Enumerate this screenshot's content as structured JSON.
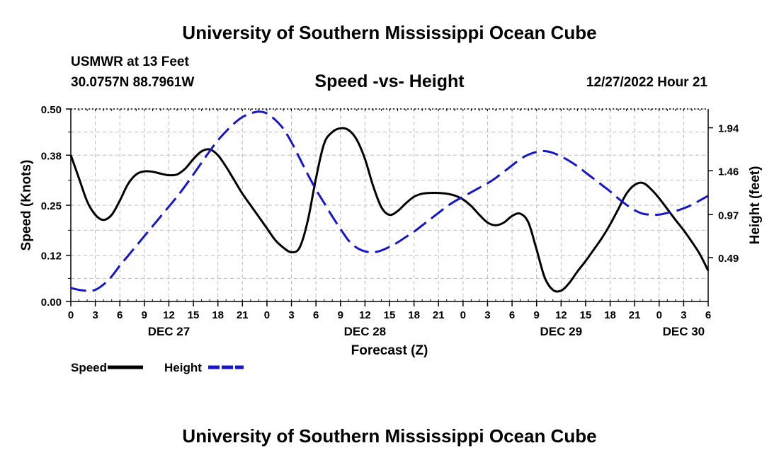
{
  "header": {
    "title": "University of Southern Mississippi Ocean Cube",
    "station": "USMWR at 13 Feet",
    "coords": "30.0757N  88.7961W",
    "subtitle": "Speed -vs- Height",
    "datetime": "12/27/2022 Hour 21"
  },
  "footer": {
    "title": "University of Southern Mississippi Ocean Cube"
  },
  "chart_data": {
    "type": "line",
    "title": "Speed -vs- Height",
    "xlabel": "Forecast (Z)",
    "ylabel": "Speed (Knots)",
    "y2label": "Height (feet)",
    "x_unit": "hours since DEC 27 00Z",
    "xlim": [
      0,
      78
    ],
    "ylim": [
      0.0,
      0.5
    ],
    "y2lim": [
      0.0,
      2.15
    ],
    "yticks": [
      0.0,
      0.12,
      0.25,
      0.38,
      0.5
    ],
    "ytick_labels": [
      "0.00",
      "0.12",
      "0.25",
      "0.38",
      "0.50"
    ],
    "y2ticks": [
      0.49,
      0.97,
      1.46,
      1.94
    ],
    "y2tick_labels": [
      "0.49",
      "0.97",
      "1.46",
      "1.94"
    ],
    "xticks": [
      0,
      3,
      6,
      9,
      12,
      15,
      18,
      21,
      24,
      27,
      30,
      33,
      36,
      39,
      42,
      45,
      48,
      51,
      54,
      57,
      60,
      63,
      66,
      69,
      72,
      75,
      78
    ],
    "xtick_labels": [
      "0",
      "3",
      "6",
      "9",
      "12",
      "15",
      "18",
      "21",
      "0",
      "3",
      "6",
      "9",
      "12",
      "15",
      "18",
      "21",
      "0",
      "3",
      "6",
      "9",
      "12",
      "15",
      "18",
      "21",
      "0",
      "3",
      "6"
    ],
    "day_labels": [
      {
        "x": 12,
        "label": "DEC 27"
      },
      {
        "x": 36,
        "label": "DEC 28"
      },
      {
        "x": 60,
        "label": "DEC 29"
      },
      {
        "x": 75,
        "label": "DEC 30"
      }
    ],
    "grid": true,
    "legend": "bottom-left",
    "series": [
      {
        "name": "Speed",
        "axis": "left",
        "color": "#000000",
        "style": "solid",
        "x": [
          0,
          1,
          2,
          3,
          4,
          5,
          6,
          7,
          8,
          9,
          10,
          11,
          12,
          13,
          14,
          15,
          16,
          17,
          18,
          19,
          20,
          21,
          22,
          23,
          24,
          25,
          26,
          27,
          28,
          29,
          30,
          31,
          32,
          33,
          34,
          35,
          36,
          37,
          38,
          39,
          40,
          41,
          42,
          43,
          44,
          45,
          46,
          47,
          48,
          49,
          50,
          51,
          52,
          53,
          54,
          55,
          56,
          57,
          58,
          59,
          60,
          61,
          62,
          63,
          64,
          65,
          66,
          67,
          68,
          69,
          70,
          71,
          72,
          73,
          74,
          75,
          76,
          77,
          78
        ],
        "values": [
          0.38,
          0.32,
          0.26,
          0.225,
          0.212,
          0.225,
          0.262,
          0.305,
          0.33,
          0.338,
          0.337,
          0.332,
          0.328,
          0.33,
          0.345,
          0.37,
          0.39,
          0.395,
          0.38,
          0.35,
          0.315,
          0.28,
          0.25,
          0.22,
          0.19,
          0.16,
          0.14,
          0.128,
          0.14,
          0.21,
          0.32,
          0.41,
          0.44,
          0.45,
          0.445,
          0.42,
          0.37,
          0.3,
          0.245,
          0.225,
          0.235,
          0.255,
          0.272,
          0.28,
          0.282,
          0.282,
          0.28,
          0.275,
          0.265,
          0.248,
          0.225,
          0.205,
          0.198,
          0.205,
          0.222,
          0.228,
          0.205,
          0.135,
          0.062,
          0.03,
          0.028,
          0.048,
          0.078,
          0.105,
          0.135,
          0.165,
          0.2,
          0.24,
          0.28,
          0.303,
          0.308,
          0.292,
          0.268,
          0.24,
          0.212,
          0.185,
          0.155,
          0.122,
          0.08
        ]
      },
      {
        "name": "Height",
        "axis": "right",
        "color": "#1515cc",
        "style": "dashed",
        "x": [
          0,
          1,
          2,
          3,
          4,
          5,
          6,
          7,
          8,
          9,
          10,
          11,
          12,
          13,
          14,
          15,
          16,
          17,
          18,
          19,
          20,
          21,
          22,
          23,
          24,
          25,
          26,
          27,
          28,
          29,
          30,
          31,
          32,
          33,
          34,
          35,
          36,
          37,
          38,
          39,
          40,
          41,
          42,
          43,
          44,
          45,
          46,
          47,
          48,
          49,
          50,
          51,
          52,
          53,
          54,
          55,
          56,
          57,
          58,
          59,
          60,
          61,
          62,
          63,
          64,
          65,
          66,
          67,
          68,
          69,
          70,
          71,
          72,
          73,
          74,
          75,
          76,
          77,
          78
        ],
        "values": [
          0.15,
          0.13,
          0.12,
          0.13,
          0.19,
          0.28,
          0.4,
          0.51,
          0.62,
          0.73,
          0.84,
          0.95,
          1.06,
          1.17,
          1.29,
          1.42,
          1.55,
          1.68,
          1.8,
          1.9,
          1.99,
          2.06,
          2.1,
          2.12,
          2.1,
          2.03,
          1.93,
          1.78,
          1.6,
          1.42,
          1.25,
          1.1,
          0.95,
          0.81,
          0.68,
          0.6,
          0.56,
          0.55,
          0.57,
          0.61,
          0.66,
          0.72,
          0.78,
          0.85,
          0.92,
          0.99,
          1.06,
          1.12,
          1.17,
          1.22,
          1.27,
          1.32,
          1.38,
          1.45,
          1.52,
          1.59,
          1.64,
          1.67,
          1.68,
          1.66,
          1.62,
          1.57,
          1.51,
          1.44,
          1.37,
          1.3,
          1.23,
          1.15,
          1.08,
          1.02,
          0.98,
          0.97,
          0.97,
          0.99,
          1.01,
          1.04,
          1.08,
          1.13,
          1.18
        ]
      }
    ]
  }
}
